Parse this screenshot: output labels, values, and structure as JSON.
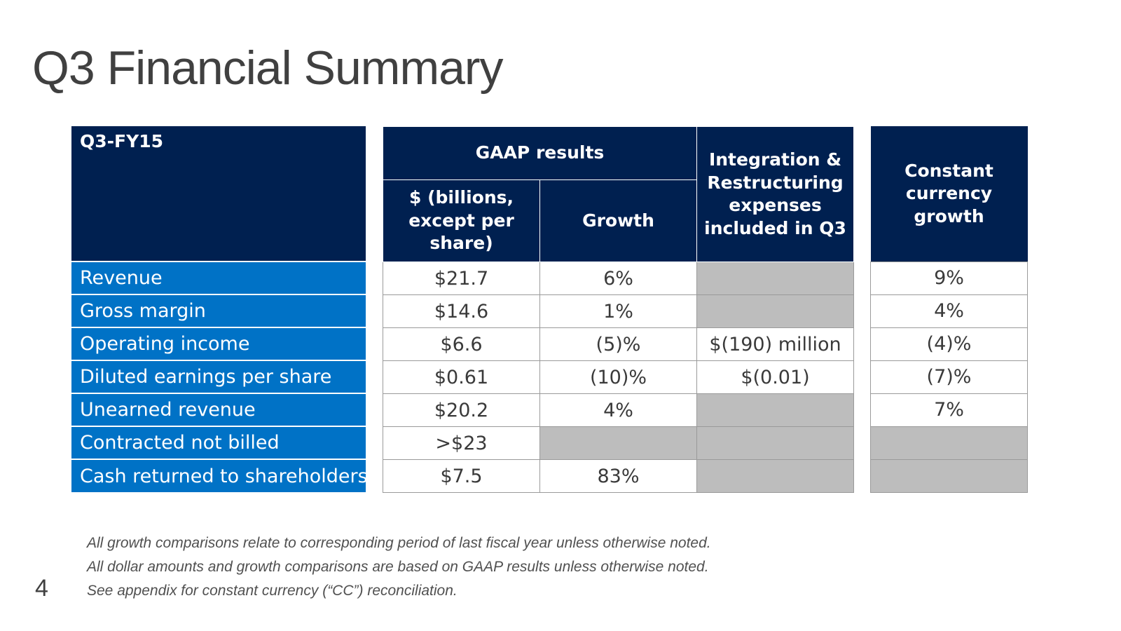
{
  "slide": {
    "title": "Q3 Financial Summary",
    "page_number": "4"
  },
  "table": {
    "period_label": "Q3-FY15",
    "gaap_header": "GAAP results",
    "dollars_header": "$ (billions, except per share)",
    "growth_header": "Growth",
    "integration_header": "Integration & Restructuring expenses included in Q3",
    "cc_growth_header": "Constant currency growth",
    "rows": [
      {
        "label": "Revenue",
        "dollars": "$21.7",
        "growth": "6%",
        "integration": "",
        "cc_growth": "9%"
      },
      {
        "label": "Gross margin",
        "dollars": "$14.6",
        "growth": "1%",
        "integration": "",
        "cc_growth": "4%"
      },
      {
        "label": "Operating income",
        "dollars": "$6.6",
        "growth": "(5)%",
        "integration": "$(190) million",
        "cc_growth": "(4)%"
      },
      {
        "label": "Diluted earnings per share",
        "dollars": "$0.61",
        "growth": "(10)%",
        "integration": "$(0.01)",
        "cc_growth": "(7)%"
      },
      {
        "label": "Unearned revenue",
        "dollars": "$20.2",
        "growth": "4%",
        "integration": "",
        "cc_growth": "7%"
      },
      {
        "label": "Contracted not billed",
        "dollars": ">$23",
        "growth": "",
        "integration": "",
        "cc_growth": ""
      },
      {
        "label": "Cash returned to shareholders",
        "dollars": "$7.5",
        "growth": "83%",
        "integration": "",
        "cc_growth": ""
      }
    ]
  },
  "footnotes": [
    "All growth comparisons relate to corresponding period of last fiscal year unless otherwise noted.",
    "All dollar amounts and growth comparisons are based on GAAP results unless otherwise noted.",
    "See appendix for constant currency (“CC”) reconciliation."
  ],
  "colors": {
    "header_navy": "#002050",
    "label_blue": "#0072c6",
    "empty_cell_gray": "#bdbdbd",
    "title_gray": "#404040"
  }
}
